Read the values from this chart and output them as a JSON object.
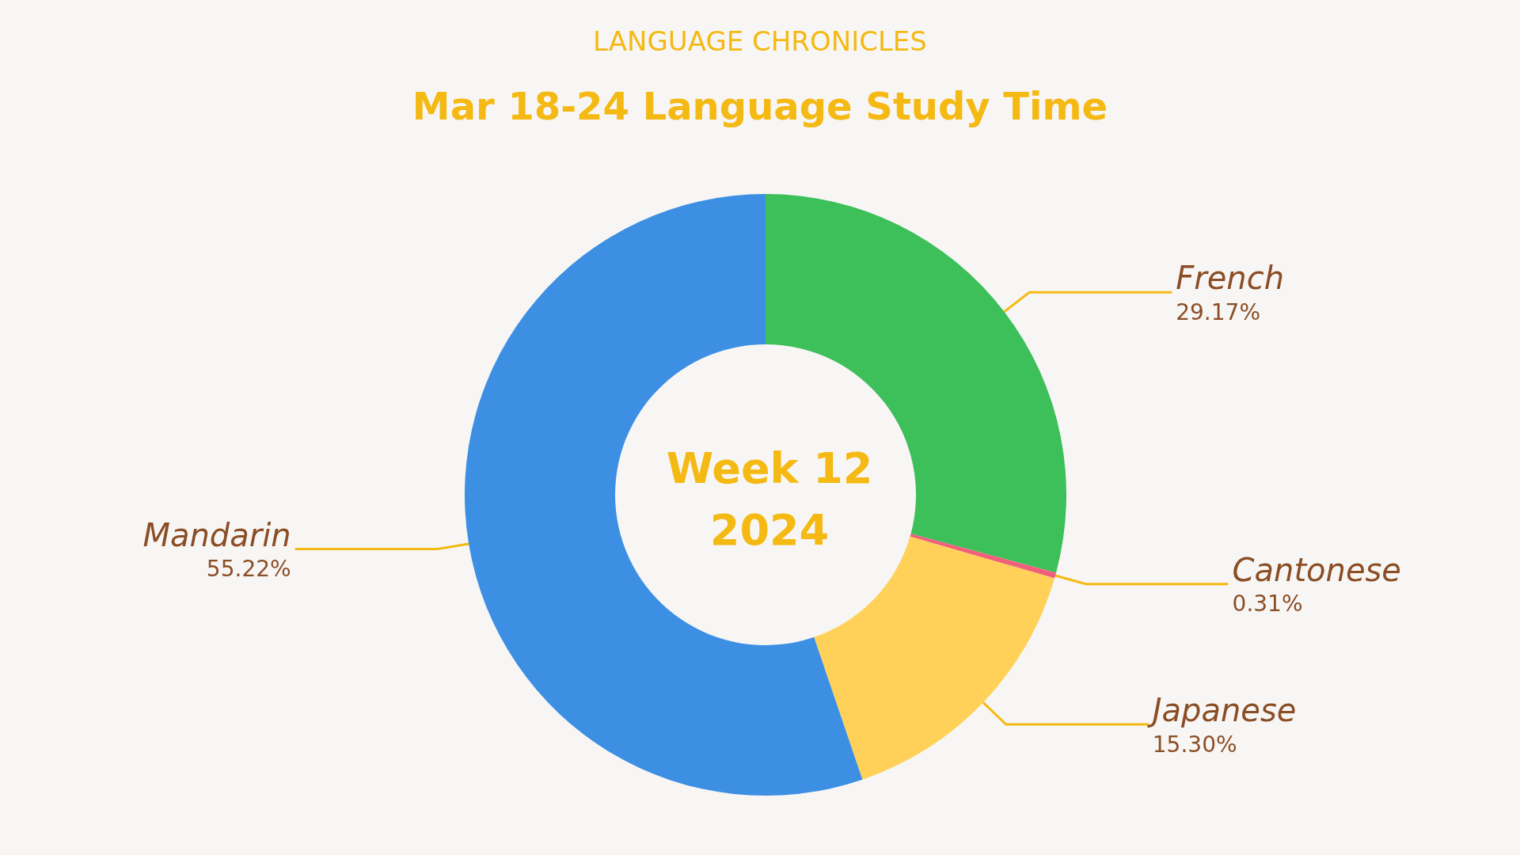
{
  "chart_data": {
    "type": "donut",
    "subtitle": "LANGUAGE CHRONICLES",
    "title": "Mar 18-24 Language Study Time",
    "categories": [
      "French",
      "Cantonese",
      "Japanese",
      "Mandarin"
    ],
    "values": [
      29.17,
      0.31,
      15.3,
      55.22
    ],
    "colors": [
      "#3dbf5a",
      "#f0607a",
      "#ffd159",
      "#3d8fe3"
    ],
    "value_labels": [
      "29.17%",
      "0.31%",
      "15.30%",
      "55.22%"
    ],
    "annotations": [
      "Week 12\n2024"
    ],
    "legend": false
  }
}
